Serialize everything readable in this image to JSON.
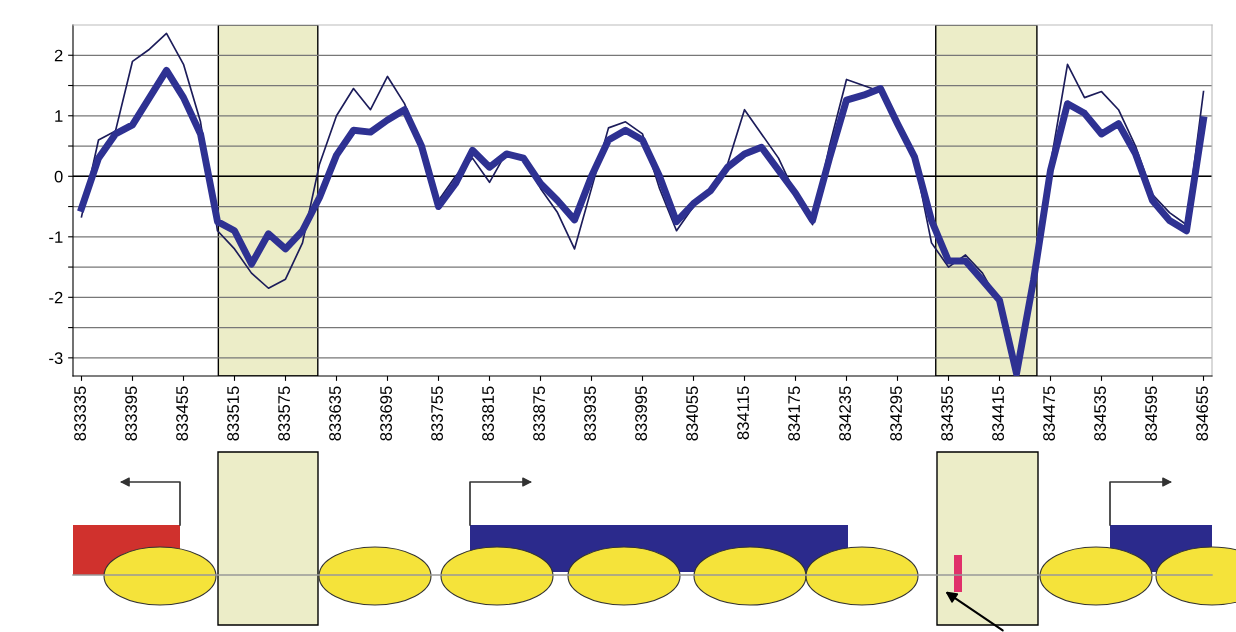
{
  "chart_data": {
    "type": "line",
    "x": [
      833335,
      833355,
      833375,
      833395,
      833415,
      833435,
      833455,
      833475,
      833495,
      833515,
      833535,
      833555,
      833575,
      833595,
      833615,
      833635,
      833655,
      833675,
      833695,
      833715,
      833735,
      833755,
      833775,
      833795,
      833815,
      833835,
      833855,
      833875,
      833895,
      833915,
      833935,
      833955,
      833975,
      833995,
      834015,
      834035,
      834055,
      834075,
      834095,
      834115,
      834135,
      834155,
      834175,
      834195,
      834215,
      834235,
      834255,
      834275,
      834295,
      834315,
      834335,
      834355,
      834375,
      834395,
      834415,
      834435,
      834455,
      834475,
      834495,
      834515,
      834535,
      834555,
      834575,
      834595,
      834615,
      834635,
      834655
    ],
    "series": [
      {
        "color": "#1c1c5a",
        "values": [
          -0.67,
          0.6,
          0.75,
          1.9,
          2.1,
          2.36,
          1.85,
          0.9,
          -0.9,
          -1.2,
          -1.6,
          -1.85,
          -1.7,
          -1.1,
          0.2,
          1.0,
          1.45,
          1.1,
          1.65,
          1.2,
          0.5,
          -0.4,
          0.0,
          0.3,
          -0.1,
          0.4,
          0.3,
          -0.2,
          -0.6,
          -1.2,
          -0.2,
          0.8,
          0.9,
          0.7,
          -0.2,
          -0.9,
          -0.5,
          -0.2,
          0.2,
          1.1,
          0.7,
          0.3,
          -0.3,
          -0.8,
          0.5,
          1.6,
          1.5,
          1.4,
          0.9,
          0.3,
          -1.1,
          -1.5,
          -1.3,
          -1.6,
          -2.1,
          -3.2,
          -1.8,
          0.2,
          1.85,
          1.3,
          1.4,
          1.1,
          0.5,
          -0.3,
          -0.6,
          -0.8,
          1.4
        ]
      },
      {
        "color": "#2e3192",
        "values": [
          -0.53,
          0.3,
          0.7,
          0.85,
          1.3,
          1.75,
          1.3,
          0.7,
          -0.75,
          -0.9,
          -1.45,
          -0.95,
          -1.2,
          -0.9,
          -0.35,
          0.35,
          0.76,
          0.73,
          0.93,
          1.1,
          0.5,
          -0.5,
          -0.12,
          0.43,
          0.15,
          0.37,
          0.3,
          -0.12,
          -0.4,
          -0.72,
          0.0,
          0.6,
          0.76,
          0.6,
          0.0,
          -0.75,
          -0.45,
          -0.24,
          0.15,
          0.37,
          0.48,
          0.1,
          -0.28,
          -0.73,
          0.3,
          1.26,
          1.34,
          1.45,
          0.87,
          0.32,
          -0.73,
          -1.4,
          -1.4,
          -1.72,
          -2.05,
          -3.26,
          -1.72,
          0.1,
          1.2,
          1.04,
          0.7,
          0.87,
          0.37,
          -0.4,
          -0.73,
          -0.9,
          0.93
        ]
      }
    ],
    "xlim": [
      833325,
      834665
    ],
    "xticks": [
      833335,
      833395,
      833455,
      833515,
      833575,
      833635,
      833695,
      833755,
      833815,
      833875,
      833935,
      833995,
      834055,
      834115,
      834175,
      834235,
      834295,
      834355,
      834415,
      834475,
      834535,
      834595,
      834655
    ],
    "ylim": [
      -3.3,
      2.5
    ],
    "yticks": [
      -3,
      {
        "value": -2.5,
        "label": null
      },
      -2,
      {
        "value": -1.5,
        "label": null
      },
      -1,
      {
        "value": -0.5,
        "label": null
      },
      0,
      {
        "value": 0.5,
        "label": null
      },
      1,
      {
        "value": 1.5,
        "label": null
      },
      2
    ],
    "bands": [
      {
        "axis": "x",
        "from": 833496,
        "to": 833613,
        "color": "#ecedc8"
      },
      {
        "axis": "x",
        "from": 834340,
        "to": 834459,
        "color": "#ecedc8"
      }
    ],
    "grid": "y",
    "marker": "none",
    "line_style": "solid",
    "legend": false
  }
}
